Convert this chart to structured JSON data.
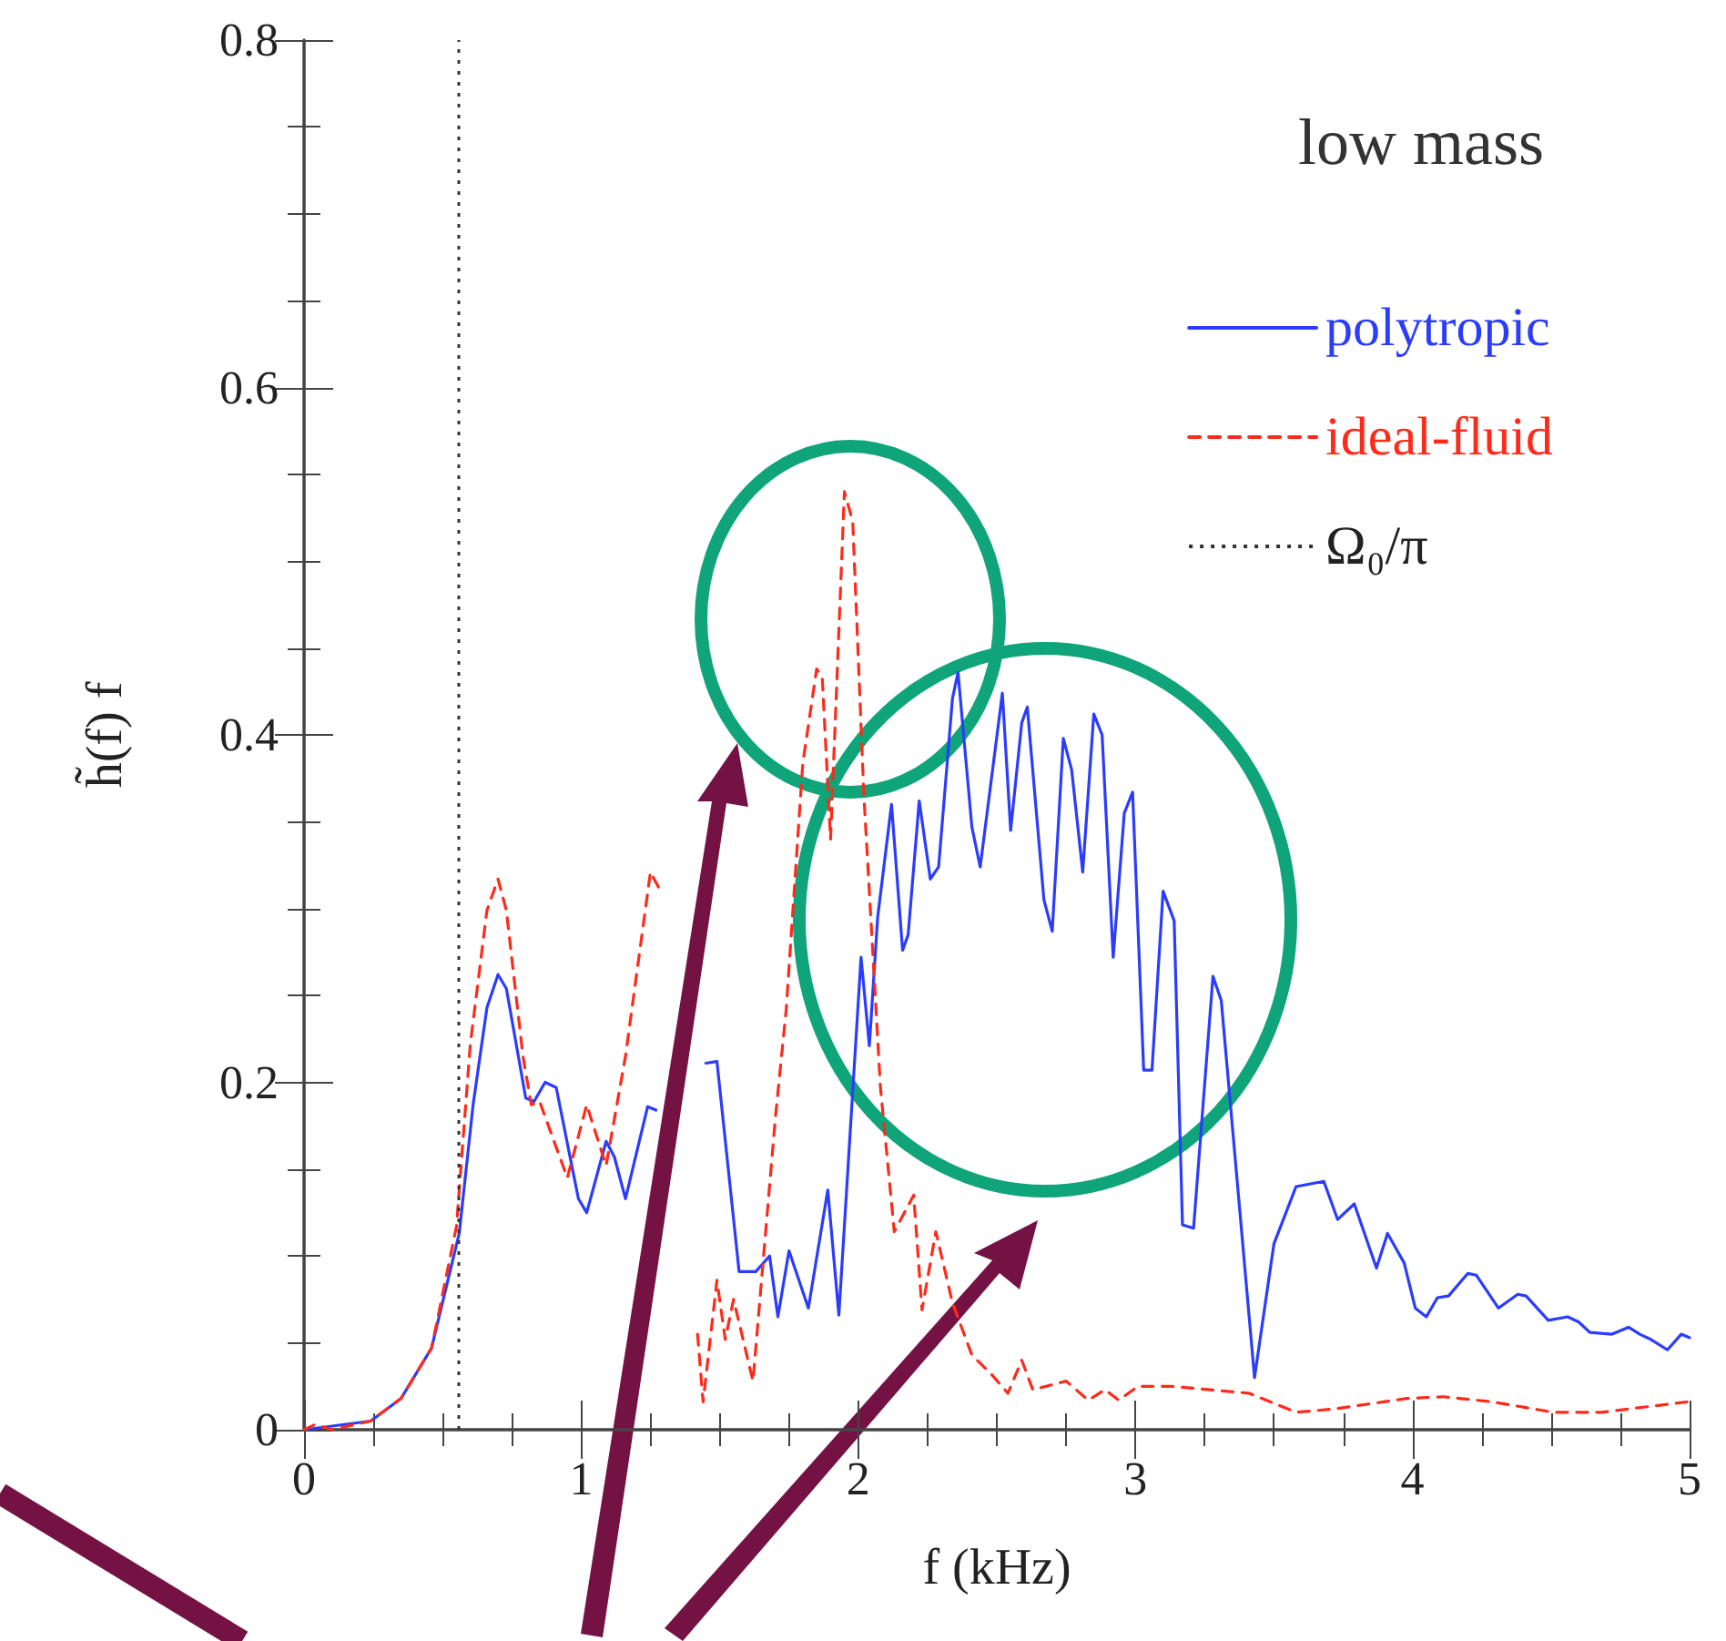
{
  "chart_data": {
    "type": "line",
    "xlabel": "f (kHz)",
    "ylabel": "h̃(f) f",
    "xlim": [
      0,
      5
    ],
    "ylim": [
      0,
      0.8
    ],
    "xticks": [
      0,
      1,
      2,
      3,
      4,
      5
    ],
    "yticks": [
      0,
      0.2,
      0.4,
      0.6,
      0.8
    ],
    "grid": false,
    "marker": "none",
    "legend": "top right",
    "annotations": [
      "low mass"
    ],
    "ref_lines": [
      {
        "axis": "x",
        "value": 0.56,
        "label": "Ω₀/π",
        "color": "#333333",
        "line_style": "dotted"
      }
    ],
    "series": [
      {
        "name": "polytropic",
        "color": "#2b3cff",
        "line_style": "solid",
        "x": [
          0,
          0.24,
          0.35,
          0.46,
          0.56,
          0.61,
          0.66,
          0.7,
          0.73,
          0.8,
          0.83,
          0.87,
          0.91,
          0.99,
          1.02,
          1.09,
          1.12,
          1.16,
          1.24,
          1.27,
          1.38,
          1.45,
          1.49,
          1.57,
          1.63,
          1.68,
          1.71,
          1.75,
          1.82,
          1.89,
          1.93,
          2.01,
          2.04,
          2.07,
          2.12,
          2.16,
          2.18,
          2.22,
          2.26,
          2.29,
          2.34,
          2.36,
          2.41,
          2.44,
          2.52,
          2.55,
          2.59,
          2.61,
          2.67,
          2.7,
          2.74,
          2.77,
          2.81,
          2.85,
          2.88,
          2.92,
          2.96,
          2.99,
          3.03,
          3.06,
          3.1,
          3.14,
          3.17,
          3.21,
          3.28,
          3.31,
          3.43,
          3.5,
          3.58,
          3.68,
          3.73,
          3.79,
          3.87,
          3.91,
          3.97,
          4.01,
          4.05,
          4.09,
          4.13,
          4.2,
          4.23,
          4.31,
          4.38,
          4.41,
          4.49,
          4.56,
          4.6,
          4.64,
          4.72,
          4.78,
          4.82,
          4.86,
          4.92,
          4.97,
          5
        ],
        "values": [
          0,
          0.005,
          0.018,
          0.047,
          0.113,
          0.187,
          0.243,
          0.262,
          0.254,
          0.191,
          0.189,
          0.2,
          0.197,
          0.133,
          0.125,
          0.166,
          0.157,
          0.133,
          0.186,
          0.184,
          null,
          0.211,
          0.212,
          0.091,
          0.091,
          0.1,
          0.065,
          0.103,
          0.07,
          0.138,
          0.066,
          0.272,
          0.221,
          0.295,
          0.36,
          0.276,
          0.285,
          0.362,
          0.317,
          0.324,
          0.421,
          0.436,
          0.347,
          0.324,
          0.424,
          0.345,
          0.407,
          0.416,
          0.305,
          0.287,
          0.398,
          0.38,
          0.321,
          0.412,
          0.4,
          0.272,
          0.355,
          0.367,
          0.207,
          0.207,
          0.31,
          0.293,
          0.118,
          0.116,
          0.261,
          0.247,
          0.03,
          0.107,
          0.14,
          0.143,
          0.121,
          0.13,
          0.093,
          0.113,
          0.096,
          0.07,
          0.065,
          0.076,
          0.077,
          0.09,
          0.089,
          0.07,
          0.078,
          0.077,
          0.063,
          0.065,
          0.062,
          0.056,
          0.055,
          0.059,
          0.055,
          0.052,
          0.046,
          0.055,
          0.053
        ]
      },
      {
        "name": "ideal-fluid",
        "color": "#ff2a1a",
        "line_style": "dashed",
        "x": [
          0,
          0.04,
          0.1,
          0.24,
          0.35,
          0.46,
          0.55,
          0.6,
          0.66,
          0.7,
          0.73,
          0.79,
          0.82,
          0.85,
          0.95,
          1.02,
          1.09,
          1.16,
          1.25,
          1.29,
          1.35,
          1.42,
          1.44,
          1.49,
          1.52,
          1.55,
          1.62,
          1.7,
          1.74,
          1.8,
          1.85,
          1.87,
          1.9,
          1.95,
          1.98,
          2.02,
          2.08,
          2.13,
          2.2,
          2.23,
          2.28,
          2.34,
          2.41,
          2.48,
          2.54,
          2.59,
          2.63,
          2.75,
          2.83,
          2.89,
          2.94,
          3.01,
          3.13,
          3.27,
          3.41,
          3.58,
          3.72,
          3.98,
          4.11,
          4.29,
          4.51,
          4.68,
          4.99
        ],
        "values": [
          0,
          0.003,
          0,
          0.005,
          0.018,
          0.047,
          0.117,
          0.222,
          0.299,
          0.317,
          0.299,
          0.215,
          0.187,
          0.189,
          0.145,
          0.187,
          0.152,
          0.215,
          0.321,
          0.309,
          null,
          0.055,
          0.016,
          0.086,
          0.052,
          0.075,
          0.028,
          0.178,
          0.242,
          0.384,
          0.438,
          0.433,
          0.34,
          0.54,
          0.523,
          0.366,
          0.197,
          0.114,
          0.135,
          0.069,
          0.114,
          0.073,
          0.043,
          0.032,
          0.021,
          0.04,
          0.023,
          0.028,
          0.017,
          0.023,
          0.017,
          0.025,
          0.025,
          0.023,
          0.021,
          0.01,
          0.012,
          0.018,
          0.019,
          0.016,
          0.01,
          0.01,
          0.016
        ]
      }
    ]
  }
}
